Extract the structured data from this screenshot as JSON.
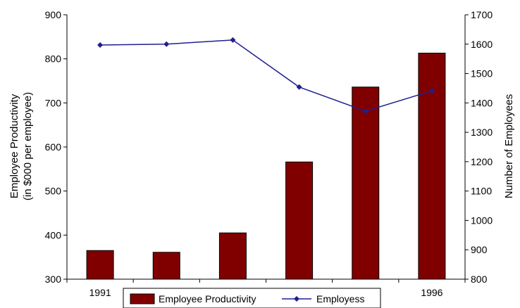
{
  "chart_data": {
    "type": "bar",
    "categories": [
      "1991",
      "",
      "",
      "",
      "",
      "1996"
    ],
    "series": [
      {
        "name": "Employee Productivity",
        "chart_type": "bar",
        "axis": "left",
        "color": "#800000",
        "values": [
          365,
          361,
          405,
          566,
          736,
          813
        ]
      },
      {
        "name": "Employess",
        "chart_type": "line",
        "axis": "right",
        "color": "#1f1f8f",
        "marker": "diamond",
        "values": [
          1597,
          1600,
          1614,
          1454,
          1372,
          1441
        ]
      }
    ],
    "y_left": {
      "label_line1": "Employee Productivity",
      "label_line2": "(in $000 per employee)",
      "ylim": [
        300,
        900
      ],
      "ticks": [
        300,
        400,
        500,
        600,
        700,
        800,
        900
      ]
    },
    "y_right": {
      "label": "Number of Employees",
      "ylim": [
        800,
        1700
      ],
      "ticks": [
        800,
        900,
        1000,
        1100,
        1200,
        1300,
        1400,
        1500,
        1600,
        1700
      ]
    },
    "legend": {
      "position": "bottom-center",
      "entries": [
        "Employee Productivity",
        "Employess"
      ]
    },
    "grid": false
  }
}
